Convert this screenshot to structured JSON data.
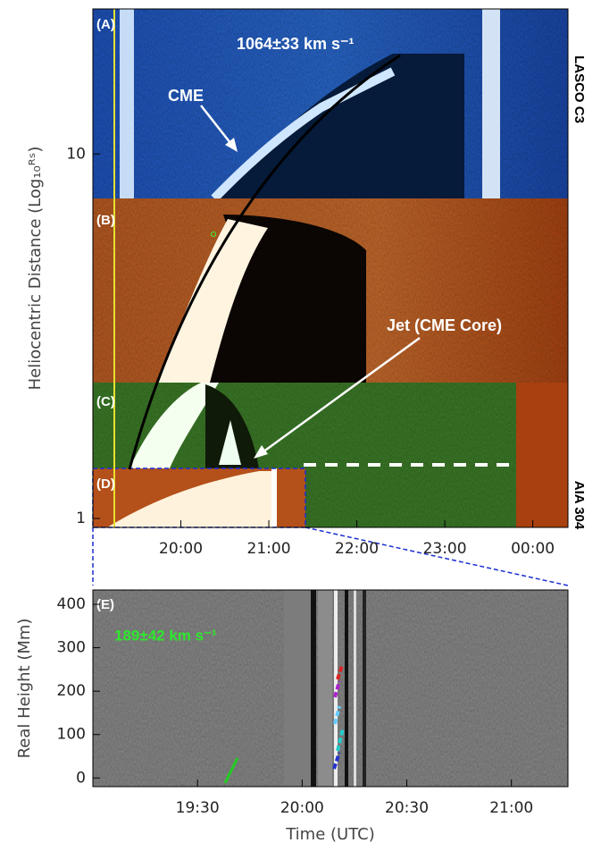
{
  "chart_data": [
    {
      "type": "image",
      "log_y": true,
      "ylabel": "Heliocentric Distance (Log₁₀ᴿˢ)",
      "xlim": [
        19,
        24.4
      ],
      "xticks": [
        {
          "value": 20,
          "label": "20:00"
        },
        {
          "value": 21,
          "label": "21:00"
        },
        {
          "value": 22,
          "label": "22:00"
        },
        {
          "value": 23,
          "label": "23:00"
        },
        {
          "value": 24,
          "label": "00:00"
        }
      ],
      "ylim": [
        0.945,
        25
      ],
      "yticks": [
        1,
        10
      ],
      "panel_labels": [
        "(A)",
        "(B)",
        "(C)",
        "(D)"
      ],
      "annotations": [
        "1064±33 km s⁻¹",
        "CME",
        "Jet (CME Core)"
      ],
      "instruments": [
        "LASCO C3",
        "AIA 304"
      ]
    },
    {
      "type": "image",
      "log_y": false,
      "ylabel": "Real Height (Mm)",
      "xlabel": "Time (UTC)",
      "xlim": [
        19,
        21.27
      ],
      "xticks": [
        {
          "value": 19.5,
          "label": "19:30"
        },
        {
          "value": 20,
          "label": "20:00"
        },
        {
          "value": 20.5,
          "label": "20:30"
        },
        {
          "value": 21,
          "label": "21:00"
        }
      ],
      "ylim": [
        -20,
        433
      ],
      "yticks": [
        0,
        100,
        200,
        300,
        400
      ],
      "panel_labels": [
        "(E)"
      ],
      "annotations": [
        "189±42 km s⁻¹"
      ]
    }
  ]
}
